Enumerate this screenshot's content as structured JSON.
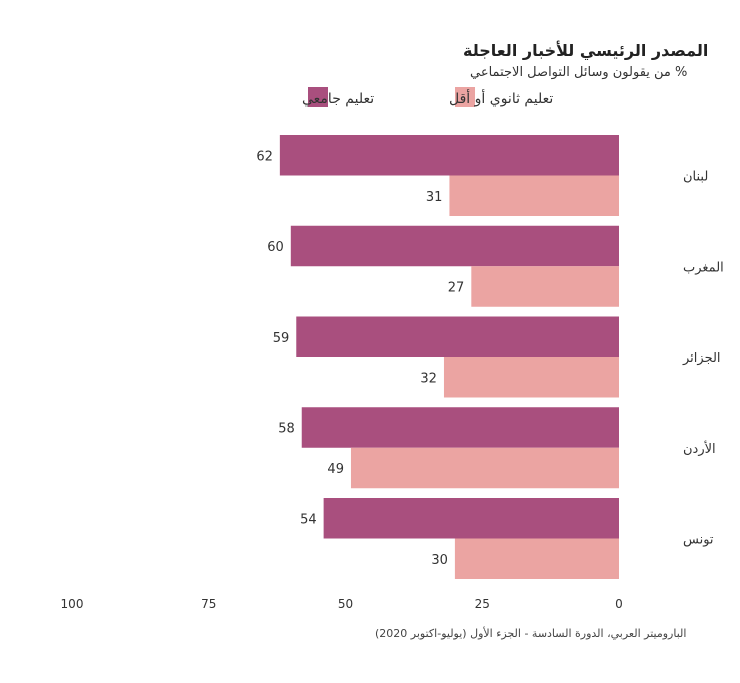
{
  "chart_data": {
    "type": "bar",
    "orientation": "horizontal",
    "title": "المصدر الرئيسي للأخبار العاجلة",
    "subtitle": "% من يقولون وسائل التواصل الاجتماعي",
    "categories": [
      "لبنان",
      "المغرب",
      "الجزائر",
      "الأردن",
      "تونس"
    ],
    "series": [
      {
        "name": "تعليم جامعي",
        "color": "#a94f7e",
        "values": [
          62,
          60,
          59,
          58,
          54
        ]
      },
      {
        "name": "تعليم ثانوي أو أقل",
        "color": "#eba4a2",
        "values": [
          31,
          27,
          32,
          49,
          30
        ]
      }
    ],
    "x_ticks": [
      0,
      25,
      50,
      75,
      100
    ],
    "xlim": [
      0,
      100
    ],
    "x_direction": "reversed",
    "legend_position": "top",
    "grid": false,
    "source": "الباروميتر العربي، الدورة السادسة - الجزء الأول (يوليو-اكتوبر 2020)"
  }
}
